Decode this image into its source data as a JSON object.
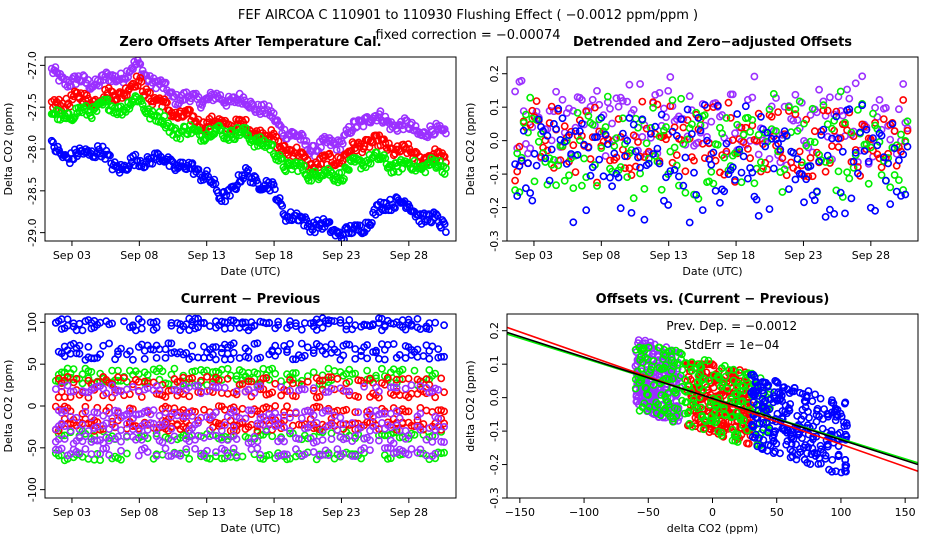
{
  "page": {
    "title": "FEF   AIRCOA C   110901 to 110930   Flushing Effect ( −0.0012 ppm/ppm )",
    "subtitle": "fixed correction = −0.00074"
  },
  "series_colors": {
    "purple": "#9b30ff",
    "red": "#ff0000",
    "green": "#00ee00",
    "blue": "#0000ff",
    "black": "#000000"
  },
  "chart_data": [
    {
      "id": "zero",
      "type": "scatter",
      "title": "Zero Offsets After Temperature Cal.",
      "xlabel": "Date (UTC)",
      "ylabel": "Delta CO2 (ppm)",
      "xlim": [
        0,
        30.5
      ],
      "ylim": [
        -29.1,
        -26.9
      ],
      "xticks": [
        {
          "v": 2,
          "label": "Sep 03"
        },
        {
          "v": 7,
          "label": "Sep 08"
        },
        {
          "v": 12,
          "label": "Sep 13"
        },
        {
          "v": 17,
          "label": "Sep 18"
        },
        {
          "v": 22,
          "label": "Sep 23"
        },
        {
          "v": 27,
          "label": "Sep 28"
        }
      ],
      "yticks": [
        {
          "v": -29.0,
          "label": "-29.0"
        },
        {
          "v": -28.5,
          "label": "-28.5"
        },
        {
          "v": -28.0,
          "label": "-28.0"
        },
        {
          "v": -27.5,
          "label": "-27.5"
        },
        {
          "v": -27.0,
          "label": "-27.0"
        }
      ],
      "series": [
        {
          "color": "purple",
          "x": [
            0.5,
            2,
            4,
            6,
            7,
            8,
            10,
            12,
            14,
            16,
            18,
            20,
            22,
            24,
            26,
            28,
            29.5
          ],
          "y": [
            -27.1,
            -27.2,
            -27.2,
            -27.1,
            -27.0,
            -27.2,
            -27.4,
            -27.4,
            -27.4,
            -27.5,
            -27.8,
            -28.0,
            -27.9,
            -27.6,
            -27.7,
            -27.8,
            -27.8
          ]
        },
        {
          "color": "red",
          "x": [
            0.5,
            2,
            4,
            6,
            7,
            8,
            10,
            12,
            14,
            16,
            18,
            20,
            22,
            24,
            26,
            28,
            29.5
          ],
          "y": [
            -27.5,
            -27.4,
            -27.4,
            -27.3,
            -27.2,
            -27.4,
            -27.6,
            -27.7,
            -27.7,
            -27.8,
            -28.0,
            -28.2,
            -28.1,
            -27.9,
            -28.0,
            -28.1,
            -28.1
          ]
        },
        {
          "color": "green",
          "x": [
            0.5,
            2,
            4,
            6,
            7,
            8,
            10,
            12,
            14,
            16,
            18,
            20,
            22,
            24,
            26,
            28,
            29.5
          ],
          "y": [
            -27.6,
            -27.6,
            -27.5,
            -27.5,
            -27.4,
            -27.6,
            -27.8,
            -27.8,
            -27.8,
            -27.9,
            -28.2,
            -28.3,
            -28.3,
            -28.1,
            -28.2,
            -28.2,
            -28.2
          ]
        },
        {
          "color": "blue",
          "x": [
            0.5,
            2,
            4,
            5,
            6,
            8,
            10,
            12,
            13,
            15,
            17,
            18,
            20,
            22,
            23,
            25,
            26,
            28,
            29.5
          ],
          "y": [
            -28.0,
            -28.1,
            -28.0,
            -28.2,
            -28.2,
            -28.1,
            -28.2,
            -28.3,
            -28.6,
            -28.3,
            -28.5,
            -28.8,
            -28.9,
            -29.0,
            -29.0,
            -28.7,
            -28.6,
            -28.8,
            -28.9
          ]
        }
      ]
    },
    {
      "id": "detrended",
      "type": "scatter",
      "title": "Detrended and Zero−adjusted Offsets",
      "xlabel": "Date (UTC)",
      "ylabel": "Delta CO2 (ppm)",
      "xlim": [
        0,
        30.5
      ],
      "ylim": [
        -0.3,
        0.25
      ],
      "xticks": [
        {
          "v": 2,
          "label": "Sep 03"
        },
        {
          "v": 7,
          "label": "Sep 08"
        },
        {
          "v": 12,
          "label": "Sep 13"
        },
        {
          "v": 17,
          "label": "Sep 18"
        },
        {
          "v": 22,
          "label": "Sep 23"
        },
        {
          "v": 27,
          "label": "Sep 28"
        }
      ],
      "yticks": [
        {
          "v": -0.3,
          "label": "-0.3"
        },
        {
          "v": -0.2,
          "label": "-0.2"
        },
        {
          "v": -0.1,
          "label": "-0.1"
        },
        {
          "v": 0.0,
          "label": "0.0"
        },
        {
          "v": 0.1,
          "label": "0.1"
        },
        {
          "v": 0.2,
          "label": "0.2"
        }
      ],
      "series": [
        {
          "color": "purple",
          "center": 0.05,
          "spread": 0.16
        },
        {
          "color": "red",
          "center": 0.0,
          "spread": 0.14
        },
        {
          "color": "green",
          "center": -0.02,
          "spread": 0.18
        },
        {
          "color": "blue",
          "center": -0.07,
          "spread": 0.2
        }
      ]
    },
    {
      "id": "current",
      "type": "scatter",
      "title": "Current − Previous",
      "xlabel": "Date (UTC)",
      "ylabel": "Delta CO2 (ppm)",
      "xlim": [
        0,
        30.5
      ],
      "ylim": [
        -110,
        110
      ],
      "xticks": [
        {
          "v": 2,
          "label": "Sep 03"
        },
        {
          "v": 7,
          "label": "Sep 08"
        },
        {
          "v": 12,
          "label": "Sep 13"
        },
        {
          "v": 17,
          "label": "Sep 18"
        },
        {
          "v": 22,
          "label": "Sep 23"
        },
        {
          "v": 27,
          "label": "Sep 28"
        }
      ],
      "yticks": [
        {
          "v": -100,
          "label": "-100"
        },
        {
          "v": -50,
          "label": "-50"
        },
        {
          "v": 0,
          "label": "0"
        },
        {
          "v": 50,
          "label": "50"
        },
        {
          "v": 100,
          "label": "100"
        }
      ],
      "series": [
        {
          "color": "blue",
          "levels": [
            100,
            60,
            95,
            70
          ]
        },
        {
          "color": "green",
          "levels": [
            40,
            30,
            -60,
            -35
          ]
        },
        {
          "color": "red",
          "levels": [
            30,
            15,
            -20,
            -25,
            -5
          ]
        },
        {
          "color": "purple",
          "levels": [
            -10,
            -40,
            -55,
            -25,
            20
          ]
        }
      ]
    },
    {
      "id": "offsets_vs",
      "type": "scatter",
      "title": "Offsets vs. (Current − Previous)",
      "xlabel": "delta CO2 (ppm)",
      "ylabel": "delta CO2 (ppm)",
      "xlim": [
        -160,
        160
      ],
      "ylim": [
        -0.3,
        0.25
      ],
      "xticks": [
        {
          "v": -150,
          "label": "−150"
        },
        {
          "v": -100,
          "label": "−100"
        },
        {
          "v": -50,
          "label": "−50"
        },
        {
          "v": 0,
          "label": "0"
        },
        {
          "v": 50,
          "label": "50"
        },
        {
          "v": 100,
          "label": "100"
        },
        {
          "v": 150,
          "label": "150"
        }
      ],
      "yticks": [
        {
          "v": -0.3,
          "label": "-0.3"
        },
        {
          "v": -0.2,
          "label": "-0.2"
        },
        {
          "v": -0.1,
          "label": "-0.1"
        },
        {
          "v": 0.0,
          "label": "0.0"
        },
        {
          "v": 0.1,
          "label": "0.1"
        },
        {
          "v": 0.2,
          "label": "0.2"
        }
      ],
      "annotations": [
        "Prev. Dep. =  −0.0012",
        "StdErr =  1e−04"
      ],
      "series": [
        {
          "color": "purple",
          "xrange": [
            -60,
            -25
          ],
          "yrange": [
            -0.1,
            0.18
          ]
        },
        {
          "color": "red",
          "xrange": [
            -20,
            30
          ],
          "yrange": [
            -0.17,
            0.1
          ]
        },
        {
          "color": "green",
          "xrange": [
            -60,
            45
          ],
          "yrange": [
            -0.18,
            0.15
          ]
        },
        {
          "color": "blue",
          "xrange": [
            30,
            105
          ],
          "yrange": [
            -0.27,
            0.08
          ]
        }
      ],
      "fits": [
        {
          "color": "red",
          "x": [
            -160,
            160
          ],
          "y": [
            0.21,
            -0.22
          ]
        },
        {
          "color": "green",
          "x": [
            -160,
            160
          ],
          "y": [
            0.19,
            -0.195
          ]
        },
        {
          "color": "black",
          "x": [
            -160,
            160
          ],
          "y": [
            0.195,
            -0.2
          ]
        }
      ]
    }
  ]
}
